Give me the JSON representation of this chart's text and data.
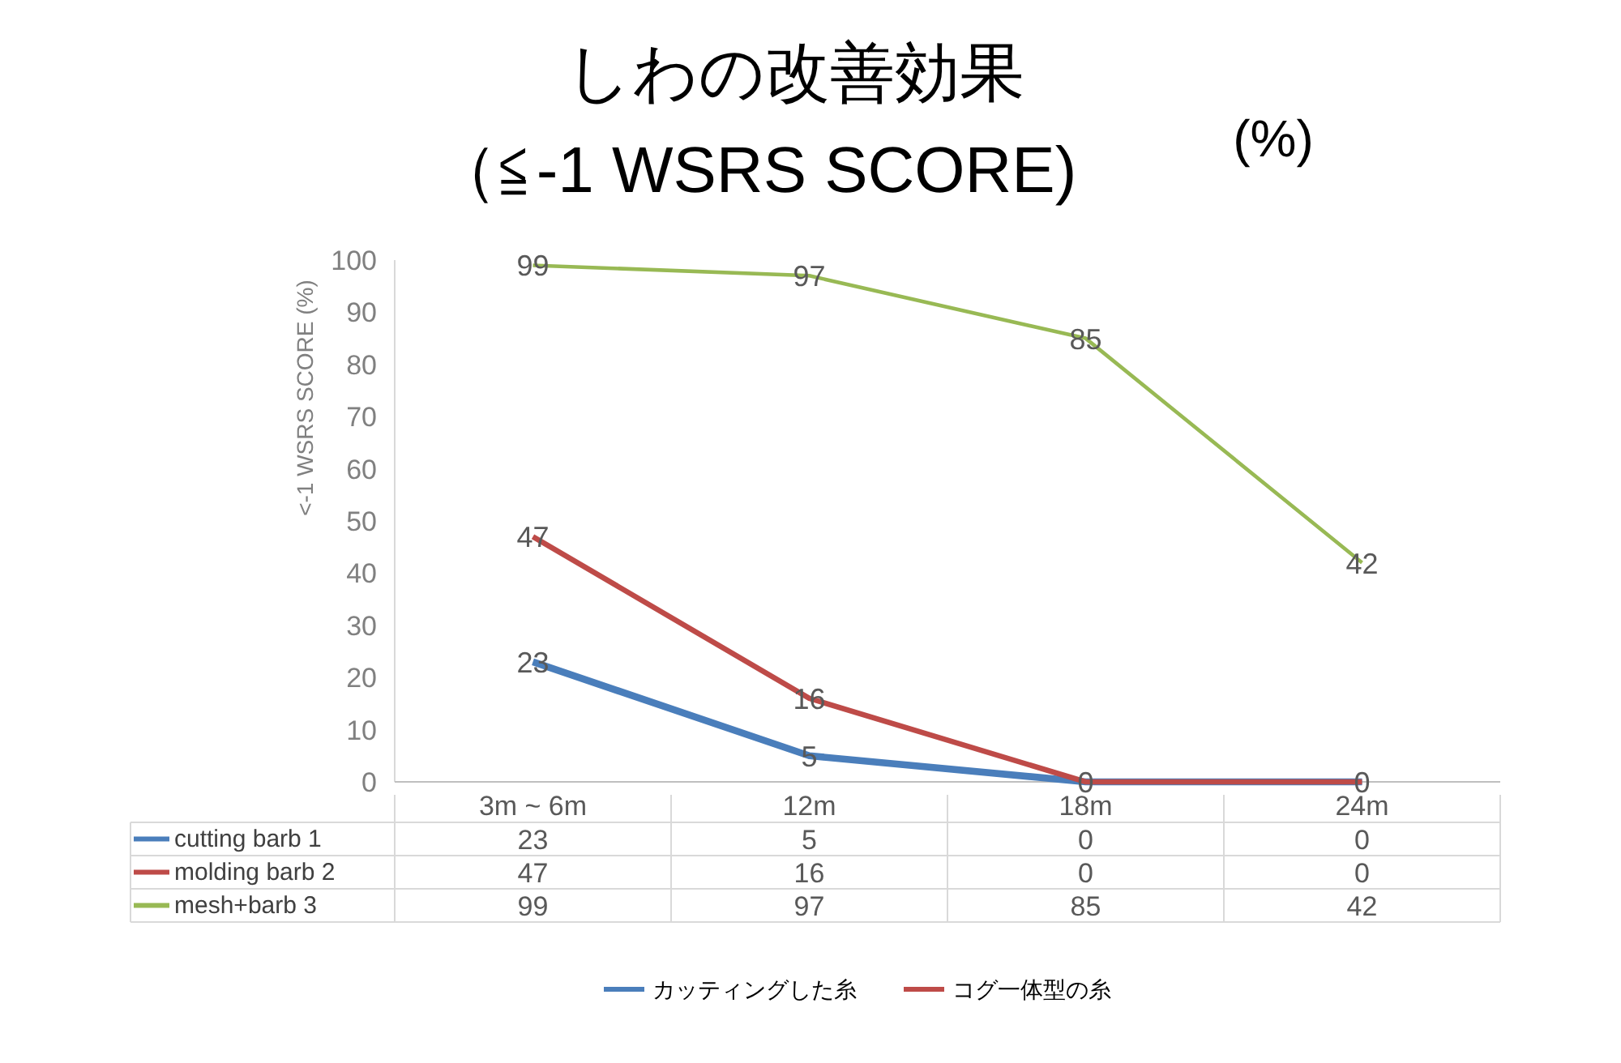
{
  "chart_data": [
    {
      "type": "line",
      "title": "しわの改善効果",
      "subtitle": "（≦-1 WSRS SCORE)",
      "ylabel": "<-1 WSRS SCORE (%)",
      "annotations": [
        "(%)"
      ],
      "categories": [
        null,
        null,
        null,
        null
      ],
      "series": [
        {
          "name": "カッティングした糸",
          "color": "#4a7ebb",
          "values": [
            23,
            5,
            0,
            0
          ],
          "value_labels": [
            "23",
            "5",
            "0",
            "0"
          ]
        },
        {
          "name": "コグ一体型の糸",
          "color": "#be4b48",
          "values": [
            47,
            16,
            0,
            0
          ],
          "value_labels": [
            "47",
            "16",
            null,
            null
          ]
        },
        {
          "color": "#98b954",
          "values": [
            99,
            97,
            85,
            42
          ],
          "value_labels": [
            "99",
            "97",
            "85",
            "42"
          ]
        }
      ],
      "ylim": [
        0,
        100
      ],
      "yticks": [
        0,
        10,
        20,
        30,
        40,
        50,
        60,
        70,
        80,
        90,
        100
      ],
      "grid": false,
      "legend": "bottom",
      "marker": "none",
      "line_style": "solid"
    },
    {
      "type": "other",
      "categories": [
        "3m ~ 6m",
        "12m",
        "18m",
        "24m"
      ],
      "data_labels": true,
      "series": [
        {
          "name": "cutting barb 1",
          "color": "#4a7ebb",
          "values": [
            23,
            5,
            0,
            0
          ]
        },
        {
          "name": "molding barb 2",
          "color": "#be4b48",
          "values": [
            47,
            16,
            0,
            0
          ]
        },
        {
          "name": "mesh+barb 3",
          "color": "#98b954",
          "values": [
            99,
            97,
            85,
            42
          ]
        }
      ]
    }
  ]
}
